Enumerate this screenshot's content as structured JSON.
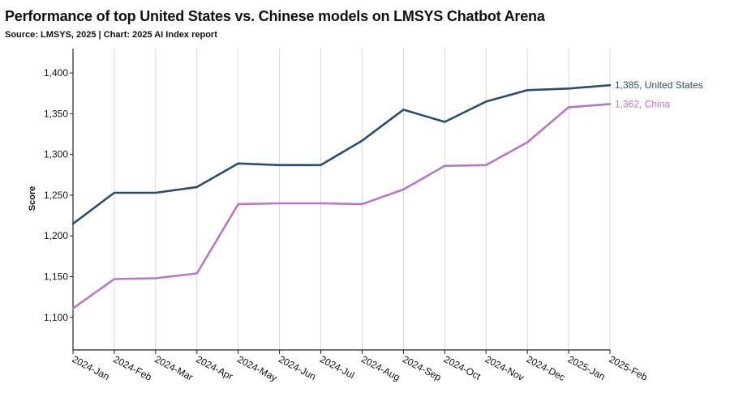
{
  "header": {
    "title": "Performance of top United States vs. Chinese models on LMSYS Chatbot Arena",
    "subtitle": "Source: LMSYS, 2025 | Chart: 2025 AI Index report"
  },
  "colors": {
    "united_states": "#2b4e70",
    "china": "#b57ac4",
    "grid": "#d8d8d8",
    "axis": "#222222"
  },
  "chart_data": {
    "type": "line",
    "title": "Performance of top United States vs. Chinese models on LMSYS Chatbot Arena",
    "xlabel": "",
    "ylabel": "Score",
    "categories": [
      "2024-Jan",
      "2024-Feb",
      "2024-Mar",
      "2024-Apr",
      "2024-May",
      "2024-Jun",
      "2024-Jul",
      "2024-Aug",
      "2024-Sep",
      "2024-Oct",
      "2024-Nov",
      "2024-Dec",
      "2025-Jan",
      "2025-Feb"
    ],
    "yticks": [
      1100,
      1150,
      1200,
      1250,
      1300,
      1350,
      1400
    ],
    "ytick_labels": [
      "1,100",
      "1,150",
      "1,200",
      "1,250",
      "1,300",
      "1,350",
      "1,400"
    ],
    "ylim": [
      1060,
      1430
    ],
    "grid": "vertical",
    "series": [
      {
        "name": "United States",
        "color": "#2b4e70",
        "values": [
          1215,
          1253,
          1253,
          1260,
          1289,
          1287,
          1287,
          1317,
          1355,
          1340,
          1365,
          1379,
          1381,
          1385
        ],
        "end_label": "1,385, United States"
      },
      {
        "name": "China",
        "color": "#b57ac4",
        "values": [
          1111,
          1147,
          1148,
          1154,
          1239,
          1240,
          1240,
          1239,
          1257,
          1286,
          1287,
          1315,
          1358,
          1362
        ],
        "end_label": "1,362, China"
      }
    ]
  }
}
